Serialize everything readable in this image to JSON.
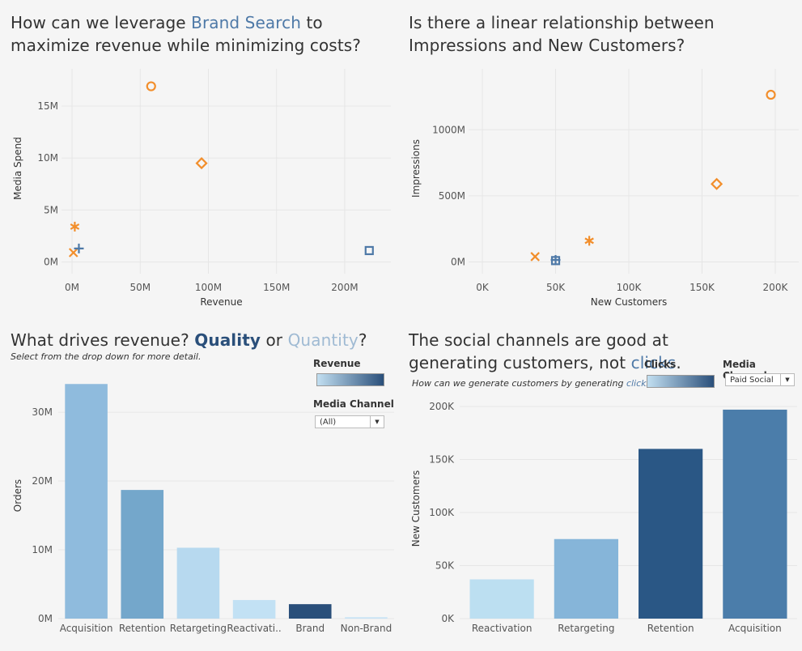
{
  "panels": {
    "brand": {
      "title_before": "How can we leverage ",
      "title_highlight": "Brand Search",
      "title_after": " to maximize revenue while minimizing costs?"
    },
    "impressions": {
      "title": "Is there a linear relationship between Impressions and New Customers?"
    },
    "revenue": {
      "title_before": "What drives revenue? ",
      "title_quality": "Quality",
      "title_mid": " or ",
      "title_quantity": "Quantity",
      "title_after": "?",
      "subtitle": "Select from the drop down for more detail.",
      "legend_title": "Revenue",
      "filter_title": "Media Channel",
      "filter_value": "(All)"
    },
    "social": {
      "title_before": "The social channels are good at generating customers, not ",
      "title_link": "clicks",
      "title_after": ".",
      "subtitle_before": "How can we generate customers by generating ",
      "subtitle_link": "clicks?",
      "legend_title": "Clicks",
      "filter_title": "Media Channel",
      "filter_value": "Paid Social"
    }
  },
  "chart_data": [
    {
      "id": "scatter_revenue_spend",
      "type": "scatter",
      "xlabel": "Revenue",
      "ylabel": "Media Spend",
      "xticks": [
        "0M",
        "50M",
        "100M",
        "150M",
        "200M"
      ],
      "yticks": [
        "0M",
        "5M",
        "10M",
        "15M"
      ],
      "xtick_values": [
        0,
        50,
        100,
        150,
        200
      ],
      "ytick_values": [
        0,
        5,
        10,
        15
      ],
      "xlim": [
        -3,
        222
      ],
      "ylim": [
        -0.5,
        17.8
      ],
      "grid": true,
      "points": [
        {
          "x": 58,
          "y": 16.9,
          "shape": "circle",
          "color": "#f28e2b"
        },
        {
          "x": 95,
          "y": 9.5,
          "shape": "diamond",
          "color": "#f28e2b"
        },
        {
          "x": 2,
          "y": 3.4,
          "shape": "asterisk",
          "color": "#f28e2b"
        },
        {
          "x": 1,
          "y": 0.9,
          "shape": "cross",
          "color": "#f28e2b"
        },
        {
          "x": 5,
          "y": 1.3,
          "shape": "plus",
          "color": "#4e79a7"
        },
        {
          "x": 218,
          "y": 1.1,
          "shape": "square",
          "color": "#4e79a7"
        }
      ]
    },
    {
      "id": "scatter_customers_impressions",
      "type": "scatter",
      "xlabel": "New Customers",
      "ylabel": "Impressions",
      "xticks": [
        "0K",
        "50K",
        "100K",
        "150K",
        "200K"
      ],
      "yticks": [
        "0M",
        "500M",
        "1000M"
      ],
      "xtick_values": [
        0,
        50,
        100,
        150,
        200
      ],
      "ytick_values": [
        0,
        500,
        1000
      ],
      "xlim": [
        -5,
        205
      ],
      "ylim": [
        -40,
        1400
      ],
      "grid": true,
      "points": [
        {
          "x": 197,
          "y": 1265,
          "shape": "circle",
          "color": "#f28e2b"
        },
        {
          "x": 160,
          "y": 590,
          "shape": "diamond",
          "color": "#f28e2b"
        },
        {
          "x": 73,
          "y": 160,
          "shape": "asterisk",
          "color": "#f28e2b"
        },
        {
          "x": 36,
          "y": 40,
          "shape": "cross",
          "color": "#f28e2b"
        },
        {
          "x": 50,
          "y": 10,
          "shape": "square",
          "color": "#4e79a7"
        },
        {
          "x": 50,
          "y": 15,
          "shape": "plus",
          "color": "#4e79a7"
        }
      ]
    },
    {
      "id": "bar_orders",
      "type": "bar",
      "ylabel": "Orders",
      "categories": [
        "Acquisition",
        "Retention",
        "Retargeting",
        "Reactivati..",
        "Brand",
        "Non-Brand"
      ],
      "values": [
        34.1,
        18.7,
        10.3,
        2.7,
        2.1,
        0.2
      ],
      "colors": [
        "#8fbbdd",
        "#74a7cb",
        "#b7d9ef",
        "#c2e1f4",
        "#2a4f7a",
        "#c7e3f5"
      ],
      "yticks": [
        "0M",
        "10M",
        "20M",
        "30M"
      ],
      "ytick_values": [
        0,
        10,
        20,
        30
      ],
      "ylim": [
        0,
        34.6
      ],
      "grid": true
    },
    {
      "id": "bar_new_customers",
      "type": "bar",
      "ylabel": "New Customers",
      "categories": [
        "Reactivation",
        "Retargeting",
        "Retention",
        "Acquisition"
      ],
      "values": [
        37,
        75,
        160,
        197
      ],
      "colors": [
        "#bcdff1",
        "#86b5d9",
        "#2a5785",
        "#4b7daa"
      ],
      "yticks": [
        "0K",
        "50K",
        "100K",
        "150K",
        "200K"
      ],
      "ytick_values": [
        0,
        50,
        100,
        150,
        200
      ],
      "ylim": [
        0,
        200
      ],
      "grid": true
    }
  ]
}
